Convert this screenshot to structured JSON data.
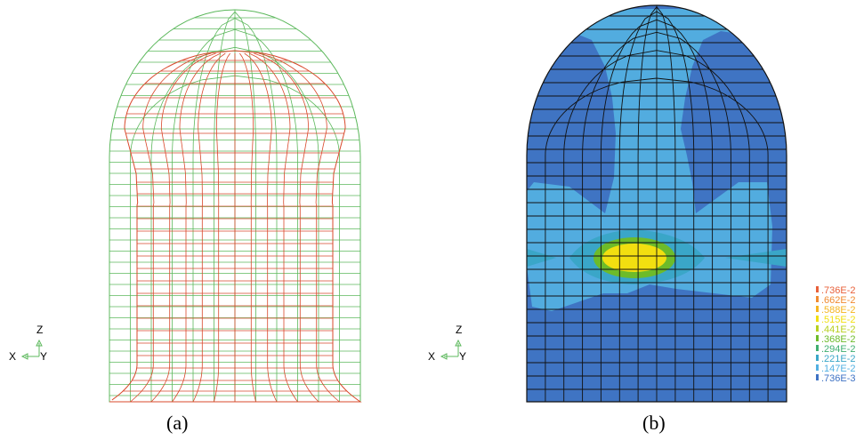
{
  "panels": {
    "a": {
      "caption": "(a)"
    },
    "b": {
      "caption": "(b)"
    }
  },
  "triad": {
    "z": "Z",
    "x": "X",
    "y": "Y"
  },
  "legend": {
    "entries": [
      {
        "label": ".736E-2",
        "color": "#e8603a"
      },
      {
        "label": ".662E-2",
        "color": "#f08a30"
      },
      {
        "label": ".588E-2",
        "color": "#f5b520"
      },
      {
        "label": ".515E-2",
        "color": "#f2df10"
      },
      {
        "label": ".441E-2",
        "color": "#b8d020"
      },
      {
        "label": ".368E-2",
        "color": "#6dbb2a"
      },
      {
        "label": ".294E-2",
        "color": "#3fae70"
      },
      {
        "label": ".221E-2",
        "color": "#3aa6c8"
      },
      {
        "label": ".147E-2",
        "color": "#52b0e2"
      },
      {
        "label": ".736E-3",
        "color": "#3e72c4"
      }
    ]
  },
  "colors": {
    "undeformed_mesh": "#5cb85c",
    "deformed_mesh": "#d9482b",
    "contour_base": "#3f74c3",
    "contour_mid": "#52acdf",
    "element_lines": "#111111"
  }
}
